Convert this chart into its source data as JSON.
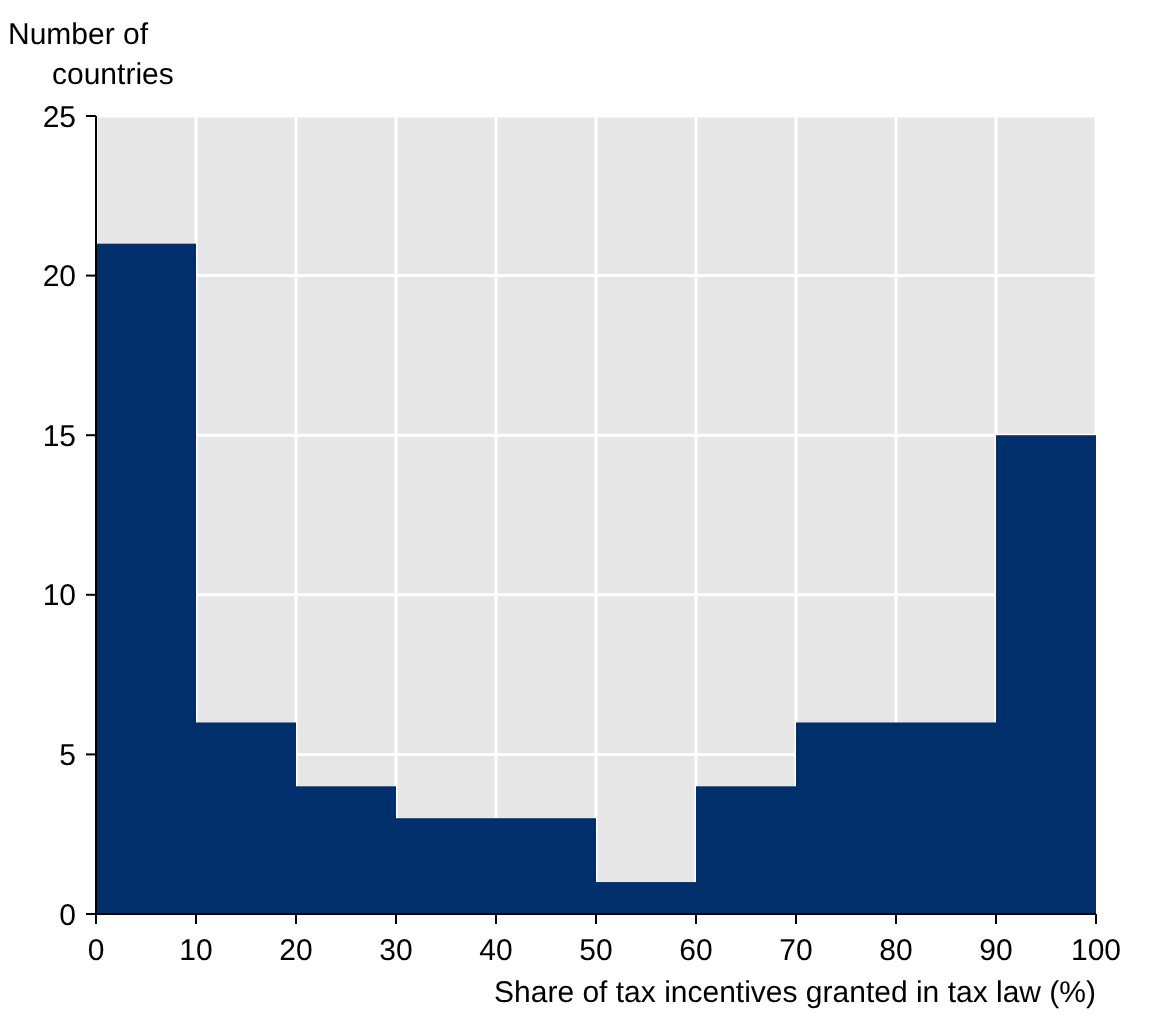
{
  "chart_data": {
    "type": "histogram",
    "ylabel": "Number of countries",
    "xlabel": "Share of tax incentives granted in tax law (%)",
    "bins": [
      0,
      10,
      20,
      30,
      40,
      50,
      60,
      70,
      80,
      90,
      100
    ],
    "values": [
      21,
      6,
      4,
      3,
      3,
      1,
      4,
      6,
      6,
      15
    ],
    "color": "#002f6c",
    "xlim": [
      0,
      100
    ],
    "xticks": [
      0,
      10,
      20,
      30,
      40,
      50,
      60,
      70,
      80,
      90,
      100
    ],
    "ylim": [
      0,
      25
    ],
    "yticks": [
      0,
      5,
      10,
      15,
      20,
      25
    ],
    "grid": true
  }
}
